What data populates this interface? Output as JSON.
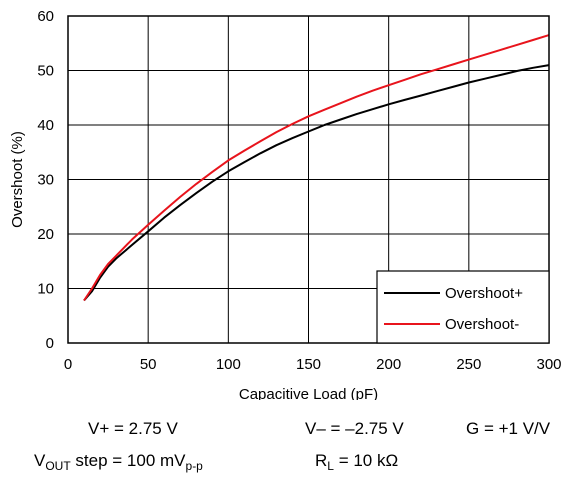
{
  "chart_data": {
    "type": "line",
    "title": "",
    "xlabel": "Capacitive Load (pF)",
    "ylabel": "Overshoot (%)",
    "xlim": [
      0,
      300
    ],
    "ylim": [
      0,
      60
    ],
    "xticks": [
      0,
      50,
      100,
      150,
      200,
      250,
      300
    ],
    "yticks": [
      0,
      10,
      20,
      30,
      40,
      50,
      60
    ],
    "grid": true,
    "legend_position": "bottom-right",
    "series": [
      {
        "name": "Overshoot+",
        "color": "#000000",
        "x": [
          10,
          15,
          20,
          25,
          30,
          40,
          50,
          60,
          70,
          80,
          90,
          100,
          110,
          120,
          130,
          140,
          150,
          160,
          170,
          180,
          190,
          200,
          210,
          220,
          230,
          240,
          250,
          260,
          270,
          280,
          290,
          300
        ],
        "y": [
          7.8,
          9.5,
          12.0,
          14.0,
          15.5,
          18.0,
          20.5,
          23.0,
          25.3,
          27.5,
          29.6,
          31.5,
          33.2,
          34.8,
          36.3,
          37.6,
          38.8,
          40.0,
          41.0,
          42.0,
          42.9,
          43.8,
          44.6,
          45.4,
          46.2,
          47.0,
          47.8,
          48.5,
          49.2,
          49.9,
          50.5,
          51.0
        ]
      },
      {
        "name": "Overshoot-",
        "color": "#e8141c",
        "x": [
          10,
          15,
          20,
          25,
          30,
          40,
          50,
          60,
          70,
          80,
          90,
          100,
          110,
          120,
          130,
          140,
          150,
          160,
          170,
          180,
          190,
          200,
          210,
          220,
          230,
          240,
          250,
          260,
          270,
          280,
          290,
          300
        ],
        "y": [
          7.8,
          10.0,
          12.5,
          14.5,
          16.0,
          19.0,
          21.7,
          24.3,
          26.8,
          29.2,
          31.4,
          33.5,
          35.3,
          37.0,
          38.7,
          40.2,
          41.6,
          42.8,
          44.0,
          45.2,
          46.3,
          47.3,
          48.3,
          49.3,
          50.2,
          51.1,
          52.0,
          52.9,
          53.8,
          54.7,
          55.6,
          56.5
        ]
      }
    ]
  },
  "conditions": {
    "vplus": "V+ = 2.75 V",
    "vminus": "V– = –2.75 V",
    "gain": "G = +1 V/V",
    "vout_main": "V",
    "vout_sub": "OUT",
    "vout_mid": " step = 100 mV",
    "vout_sub2": "p-p",
    "rl_main": "R",
    "rl_sub": "L",
    "rl_rest": " = 10 kΩ"
  }
}
